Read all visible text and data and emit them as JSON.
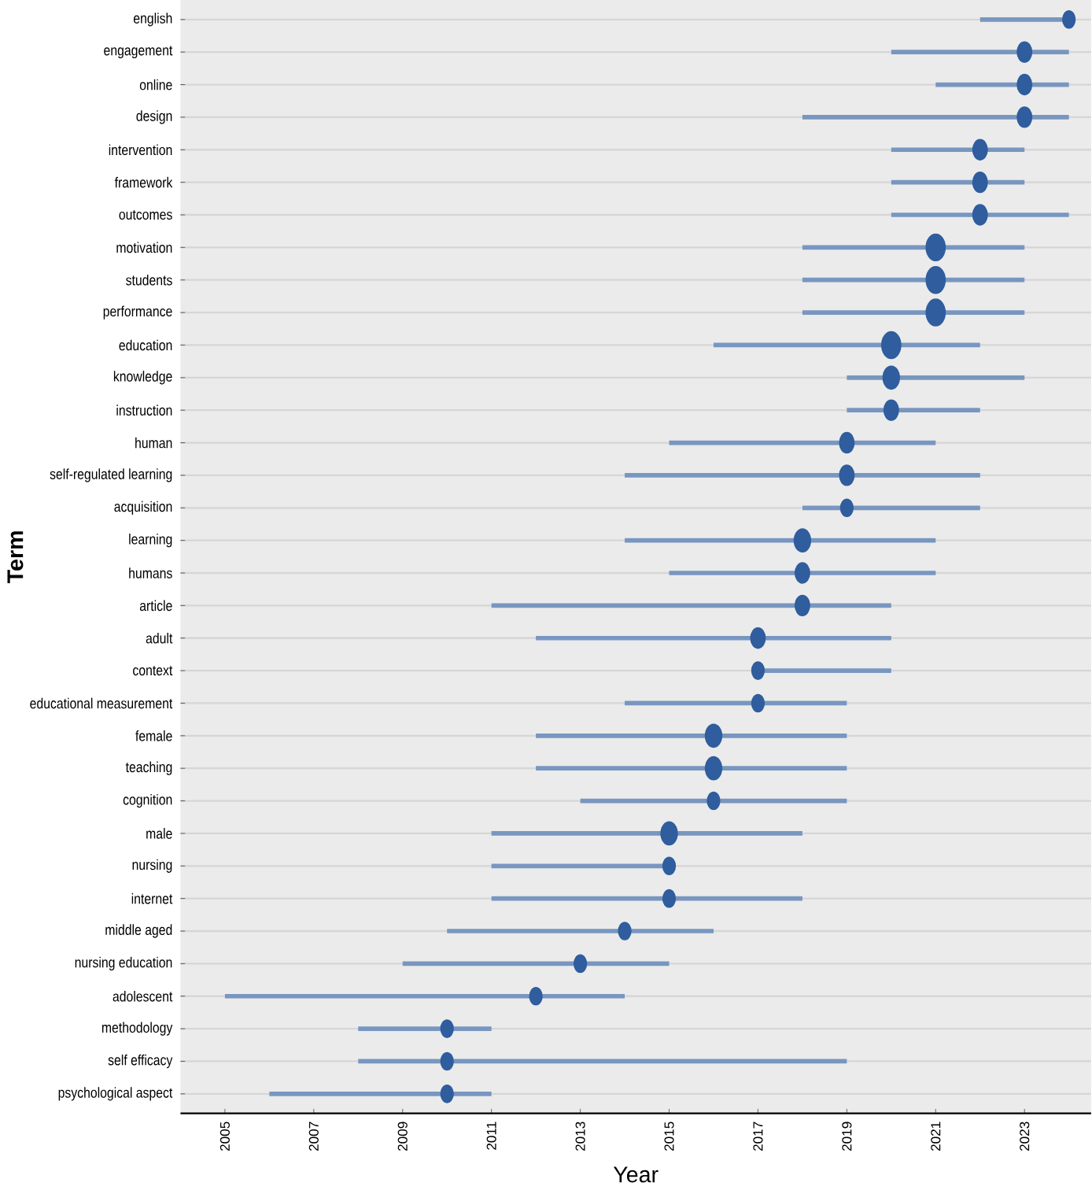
{
  "chart_data": {
    "type": "bubble",
    "orientation": "horizontal",
    "xlabel": "Year",
    "ylabel": "Term",
    "color": "#2f5d9e",
    "grid": "y",
    "categories": [
      "english",
      "engagement",
      "online",
      "design",
      "intervention",
      "framework",
      "outcomes",
      "motivation",
      "students",
      "performance",
      "education",
      "knowledge",
      "instruction",
      "human",
      "self-regulated learning",
      "acquisition",
      "learning",
      "humans",
      "article",
      "adult",
      "context",
      "educational measurement",
      "female",
      "teaching",
      "cognition",
      "male",
      "nursing",
      "internet",
      "middle aged",
      "nursing education",
      "adolescent",
      "methodology",
      "self efficacy",
      "psychological aspect"
    ],
    "values": [
      2024,
      2023,
      2023,
      2023,
      2022,
      2022,
      2022,
      2021,
      2021,
      2021,
      2020,
      2020,
      2020,
      2019,
      2019,
      2019,
      2018,
      2018,
      2018,
      2017,
      2017,
      2017,
      2016,
      2016,
      2016,
      2015,
      2015,
      2015,
      2014,
      2013,
      2012,
      2010,
      2010,
      2010
    ],
    "errors": [
      [
        2022,
        2024
      ],
      [
        2020,
        2024
      ],
      [
        2021,
        2024
      ],
      [
        2018,
        2024
      ],
      [
        2020,
        2023
      ],
      [
        2020,
        2023
      ],
      [
        2020,
        2024
      ],
      [
        2018,
        2023
      ],
      [
        2018,
        2023
      ],
      [
        2018,
        2023
      ],
      [
        2016,
        2022
      ],
      [
        2019,
        2023
      ],
      [
        2019,
        2022
      ],
      [
        2015,
        2021
      ],
      [
        2014,
        2022
      ],
      [
        2018,
        2022
      ],
      [
        2014,
        2021
      ],
      [
        2015,
        2021
      ],
      [
        2011,
        2020
      ],
      [
        2012,
        2020
      ],
      [
        2017,
        2020
      ],
      [
        2014,
        2019
      ],
      [
        2012,
        2019
      ],
      [
        2012,
        2019
      ],
      [
        2013,
        2019
      ],
      [
        2011,
        2018
      ],
      [
        2011,
        2015
      ],
      [
        2011,
        2018
      ],
      [
        2010,
        2016
      ],
      [
        2009,
        2015
      ],
      [
        2005,
        2014
      ],
      [
        2008,
        2011
      ],
      [
        2008,
        2019
      ],
      [
        2006,
        2011
      ]
    ],
    "sizes": [
      0.45,
      0.6,
      0.6,
      0.6,
      0.6,
      0.6,
      0.6,
      1,
      1,
      1,
      1,
      0.75,
      0.6,
      0.6,
      0.6,
      0.45,
      0.75,
      0.6,
      0.6,
      0.6,
      0.45,
      0.45,
      0.75,
      0.75,
      0.45,
      0.75,
      0.45,
      0.45,
      0.45,
      0.45,
      0.45,
      0.45,
      0.45,
      0.45
    ],
    "xlim": [
      2004,
      2024.5
    ],
    "xticks": [
      2005,
      2007,
      2009,
      2011,
      2013,
      2015,
      2017,
      2019,
      2021,
      2023
    ]
  }
}
